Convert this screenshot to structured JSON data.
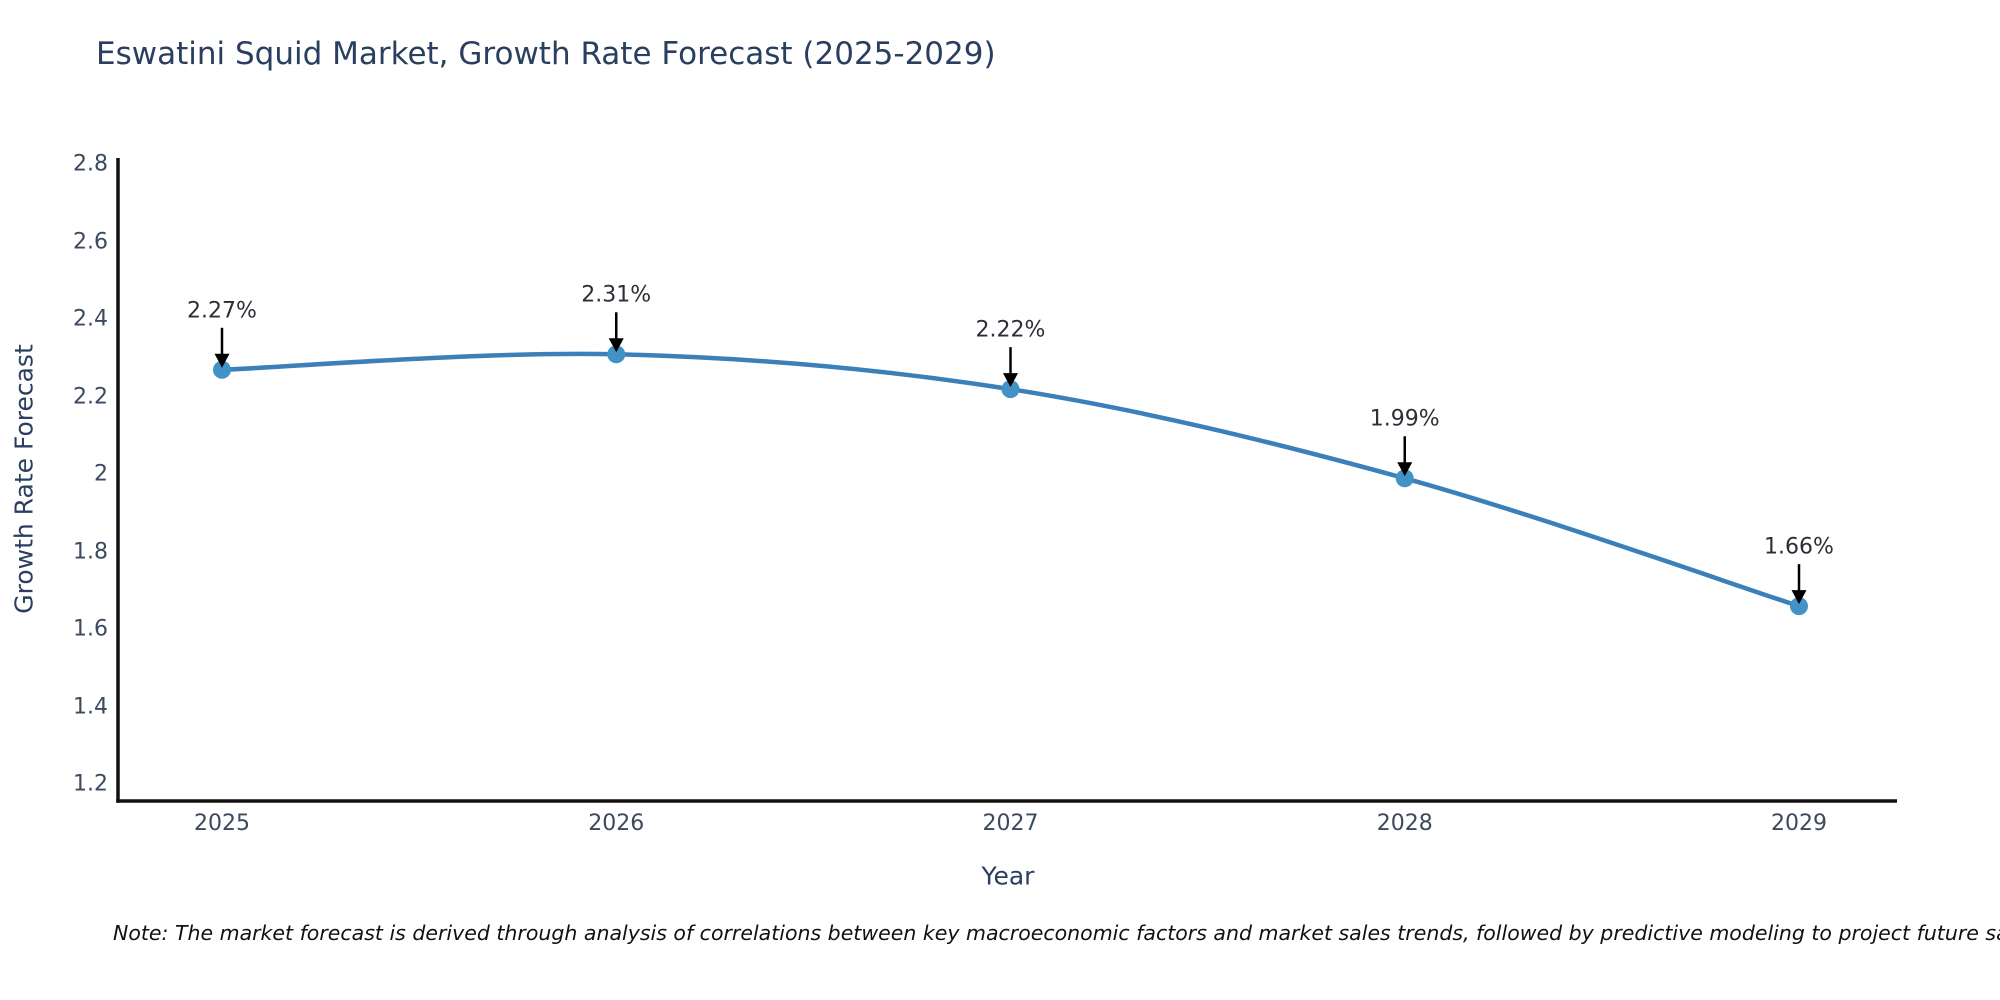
{
  "title": "Eswatini Squid Market, Growth Rate Forecast (2025-2029)",
  "note": "Note: The market forecast is derived through analysis of correlations between key macroeconomic factors and market sales trends, followed by predictive modeling to project future sales",
  "chart_data": {
    "type": "line",
    "title": "Eswatini Squid Market, Growth Rate Forecast (2025-2029)",
    "xlabel": "Year",
    "ylabel": "Growth Rate Forecast",
    "x": [
      2025,
      2026,
      2027,
      2028,
      2029
    ],
    "series": [
      {
        "name": "Growth Rate Forecast",
        "values": [
          2.27,
          2.31,
          2.22,
          1.99,
          1.66
        ],
        "point_labels": [
          "2.27%",
          "2.31%",
          "2.22%",
          "1.99%",
          "1.66%"
        ]
      }
    ],
    "x_tick_labels": [
      "2025",
      "2026",
      "2027",
      "2028",
      "2029"
    ],
    "y_ticks": [
      1.2,
      1.4,
      1.6,
      1.8,
      2,
      2.2,
      2.4,
      2.6,
      2.8
    ],
    "y_tick_labels": [
      "1.2",
      "1.4",
      "1.6",
      "1.8",
      "2",
      "2.2",
      "2.4",
      "2.6",
      "2.8"
    ],
    "ylim": [
      1.2,
      2.8
    ],
    "line_shape": "spline",
    "markers": "circle",
    "annotations": "value labels with downward arrows above each point",
    "grid": false,
    "legend_position": "none",
    "colors": {
      "line": "#3c80ba",
      "marker": "#4292c6",
      "axis_line": "#101010",
      "title_text": "#2a3f5f",
      "tick_text": "#3b4a5f",
      "annotation_text": "#2b2f36",
      "annotation_arrow": "#000000",
      "note_text": "#111111",
      "background": "#ffffff"
    }
  }
}
